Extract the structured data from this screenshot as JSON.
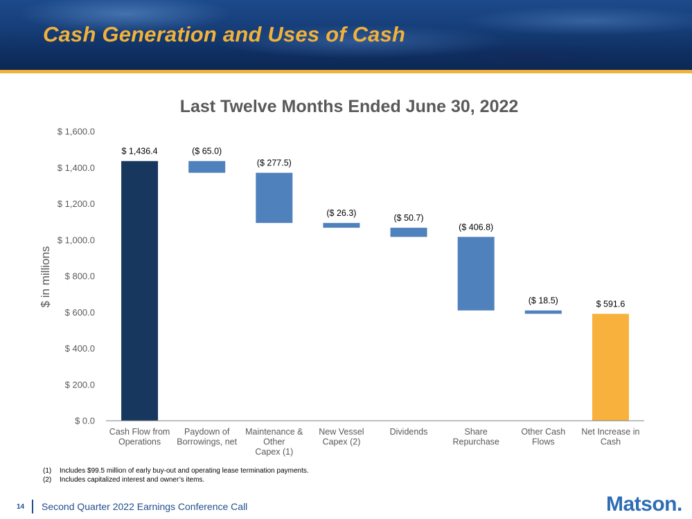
{
  "header": {
    "title": "Cash Generation and Uses of Cash"
  },
  "chart_data": {
    "type": "waterfall",
    "title": "Last Twelve Months Ended June 30, 2022",
    "ylabel": "$ in millions",
    "ylim": [
      0,
      1600
    ],
    "ytick_step": 200,
    "ytick_labels": [
      "$ 0.0",
      "$ 200.0",
      "$ 400.0",
      "$ 600.0",
      "$ 800.0",
      "$ 1,000.0",
      "$ 1,200.0",
      "$ 1,400.0",
      "$ 1,600.0"
    ],
    "categories": [
      [
        "Cash Flow from",
        "Operations"
      ],
      [
        "Paydown of",
        "Borrowings, net"
      ],
      [
        "Maintenance &",
        "Other",
        "Capex (1)"
      ],
      [
        "New Vessel",
        "Capex (2)"
      ],
      [
        "Dividends"
      ],
      [
        "Share",
        "Repurchase"
      ],
      [
        "Other Cash",
        "Flows"
      ],
      [
        "Net Increase in",
        "Cash"
      ]
    ],
    "values": [
      1436.4,
      -65.0,
      -277.5,
      -26.3,
      -50.7,
      -406.8,
      -18.5,
      591.6
    ],
    "kinds": [
      "total",
      "delta",
      "delta",
      "delta",
      "delta",
      "delta",
      "delta",
      "total"
    ],
    "data_labels": [
      "$ 1,436.4",
      "($ 65.0)",
      "($ 277.5)",
      "($ 26.3)",
      "($ 50.7)",
      "($ 406.8)",
      "($ 18.5)",
      "$ 591.6"
    ],
    "colors": {
      "start": "#17375e",
      "delta": "#4f81bd",
      "end": "#f7b13c",
      "axis": "#7f7f7f"
    }
  },
  "footnotes": [
    {
      "num": "(1)",
      "text": "Includes $99.5 million of early buy-out and operating lease termination payments."
    },
    {
      "num": "(2)",
      "text": "Includes capitalized interest and owner’s items."
    }
  ],
  "footer": {
    "page_number": "14",
    "text": "Second Quarter 2022 Earnings Conference Call",
    "logo_text": "Matson",
    "logo_mark": "."
  }
}
